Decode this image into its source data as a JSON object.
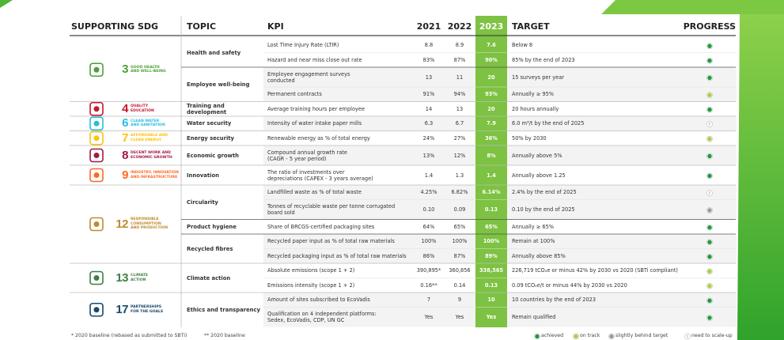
{
  "header": [
    "SUPPORTING SDG",
    "TOPIC",
    "KPI",
    "2021",
    "2022",
    "2023",
    "TARGET",
    "PROGRESS"
  ],
  "sections": [
    {
      "sdg": {
        "number": "3",
        "label": [
          "GOOD HEALTH",
          "AND WELL-BEING"
        ],
        "color": "#4c9f38"
      },
      "topics": [
        {
          "name": "Health and safety",
          "rows": [
            {
              "kpi": [
                "Lost Time Injury Rate (LTIR)"
              ],
              "y2021": "8.8",
              "y2022": "8.9",
              "y2023": "7.6",
              "target": "Below 8",
              "progress": 0
            },
            {
              "kpi": [
                "Hazard and near miss close out rate"
              ],
              "y2021": "83%",
              "y2022": "87%",
              "y2023": "90%",
              "target": "85% by the end of 2023",
              "progress": 0
            }
          ]
        },
        {
          "name": "Employee well-being",
          "rows": [
            {
              "kpi": [
                "Employee engagement surveys",
                "conducted"
              ],
              "y2021": "13",
              "y2022": "11",
              "y2023": "20",
              "target": "15 surveys per year",
              "progress": 0
            },
            {
              "kpi": [
                "Permanent contracts"
              ],
              "y2021": "91%",
              "y2022": "94%",
              "y2023": "93%",
              "target": "Annually ≥ 95%",
              "progress": 1
            }
          ]
        }
      ]
    },
    {
      "sdg": {
        "number": "4",
        "label": [
          "QUALITY",
          "EDUCATION"
        ],
        "color": "#c5192d"
      },
      "topics": [
        {
          "name": "Training and development",
          "rows": [
            {
              "kpi": [
                "Average training hours per employee"
              ],
              "y2021": "14",
              "y2022": "13",
              "y2023": "20",
              "target": "20 hours annually",
              "progress": 0
            }
          ]
        }
      ]
    },
    {
      "sdg": {
        "number": "6",
        "label": [
          "CLEAN WATER",
          "AND SANITATION"
        ],
        "color": "#26bde2"
      },
      "topics": [
        {
          "name": "Water security",
          "rows": [
            {
              "kpi": [
                "Intensity of water intake paper mills"
              ],
              "y2021": "6.3",
              "y2022": "6.7",
              "y2023": "7.9",
              "target": "6.0 m³/t by the end of 2025",
              "progress": 3
            }
          ]
        }
      ]
    },
    {
      "sdg": {
        "number": "7",
        "label": [
          "AFFORDABLE AND",
          "CLEAN ENERGY"
        ],
        "color": "#fcc30b"
      },
      "topics": [
        {
          "name": "Energy security",
          "rows": [
            {
              "kpi": [
                "Renewable energy as % of total energy"
              ],
              "y2021": "24%",
              "y2022": "27%",
              "y2023": "36%",
              "target": "50% by 2030",
              "progress": 1
            }
          ]
        }
      ]
    },
    {
      "sdg": {
        "number": "8",
        "label": [
          "DECENT WORK AND",
          "ECONOMIC GROWTH"
        ],
        "color": "#a21942"
      },
      "topics": [
        {
          "name": "Economic growth",
          "rows": [
            {
              "kpi": [
                "Compound annual growth rate",
                "(CAGR - 5 year period)"
              ],
              "y2021": "13%",
              "y2022": "12%",
              "y2023": "8%",
              "target": "Annually above 5%",
              "progress": 0
            }
          ]
        }
      ]
    },
    {
      "sdg": {
        "number": "9",
        "label": [
          "INDUSTRY, INNOVATION",
          "AND INFRASTRUCTURE"
        ],
        "color": "#fd6925"
      },
      "topics": [
        {
          "name": "Innovation",
          "rows": [
            {
              "kpi": [
                "The ratio of investments over",
                "depreciations  (CAPEX - 3 years average)"
              ],
              "y2021": "1.4",
              "y2022": "1.3",
              "y2023": "1.4",
              "target": "Annually above 1.25",
              "progress": 0
            }
          ]
        }
      ]
    },
    {
      "sdg": {
        "number": "12",
        "label": [
          "RESPONSIBLE",
          "CONSUMPTION",
          "AND PRODUCTION"
        ],
        "color": "#bf8b2e"
      },
      "topics": [
        {
          "name": "Circularity",
          "rows": [
            {
              "kpi": [
                "Landfilled waste as % of total waste"
              ],
              "y2021": "4.25%",
              "y2022": "6.82%",
              "y2023": "6.14%",
              "target": "2.4% by the end of 2025",
              "progress": 3
            },
            {
              "kpi": [
                "Tonnes of recyclable waste per tonne corrugated",
                "board sold"
              ],
              "y2021": "0.10",
              "y2022": "0.09",
              "y2023": "0.13",
              "target": "0.10 by the end of 2025",
              "progress": 2
            }
          ]
        },
        {
          "name": "Product hygiene",
          "rows": [
            {
              "kpi": [
                "Share of BRCGS-certified packaging sites"
              ],
              "y2021": "64%",
              "y2022": "65%",
              "y2023": "65%",
              "target": "Annually ≥ 65%",
              "progress": 0
            }
          ]
        },
        {
          "name": "Recycled fibres",
          "rows": [
            {
              "kpi": [
                "Recycled paper input as % of total raw materials"
              ],
              "y2021": "100%",
              "y2022": "100%",
              "y2023": "100%",
              "target": "Remain at 100%",
              "progress": 0
            },
            {
              "kpi": [
                "Recycled packaging input as % of total raw materials"
              ],
              "y2021": "86%",
              "y2022": "87%",
              "y2023": "89%",
              "target": "Annually above 85%",
              "progress": 0
            }
          ]
        }
      ]
    },
    {
      "sdg": {
        "number": "13",
        "label": [
          "CLIMATE",
          "ACTION"
        ],
        "color": "#3f7e44"
      },
      "topics": [
        {
          "name": "Climate action",
          "rows": [
            {
              "kpi": [
                "Absolute emissions (scope 1 + 2)"
              ],
              "y2021": "390,895*",
              "y2022": "360,856",
              "y2023": "338,565",
              "target": "226,719 tCO₂e or minus 42% by 2030 vs 2020 (SBTi compliant)",
              "progress": 1
            },
            {
              "kpi": [
                "Emissions intensity  (scope 1 + 2)"
              ],
              "y2021": "0.16**",
              "y2022": "0.14",
              "y2023": "0.13",
              "target": "0.09 tCO₂e/t or minus 44% by 2030 vs 2020",
              "progress": 1
            }
          ]
        }
      ]
    },
    {
      "sdg": {
        "number": "17",
        "label": [
          "PARTNERSHIPS",
          "FOR THE GOALS"
        ],
        "color": "#19486a"
      },
      "topics": [
        {
          "name": "Ethics and transparency",
          "rows": [
            {
              "kpi": [
                "Amount of sites subscribed to EcoVadis"
              ],
              "y2021": "7",
              "y2022": "9",
              "y2023": "10",
              "target": "10 countries by the end of 2023",
              "progress": 0
            },
            {
              "kpi": [
                "Qualification on 4 independent platforms:",
                "Sedex, EcoVadis, CDP, UN GC"
              ],
              "y2021": "Yes",
              "y2022": "Yes",
              "y2023": "Yes",
              "target": "Remain qualified",
              "progress": 0
            }
          ]
        }
      ]
    }
  ],
  "footnotes": [
    "* 2020 baseline (rebased as submitted to SBTi)",
    "** 2020 baseline"
  ],
  "legend": [
    {
      "label": "achieved",
      "color": "#1c9b3a"
    },
    {
      "label": "on track",
      "color": "#a6d33a"
    },
    {
      "label": "slightly behind target",
      "color": "#9a9a9a"
    },
    {
      "label": "need to scale-up",
      "color": "#ffffff"
    }
  ]
}
